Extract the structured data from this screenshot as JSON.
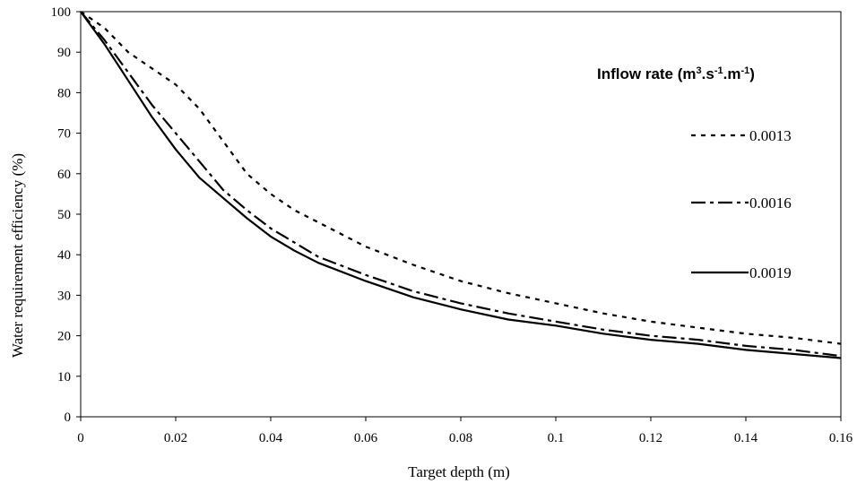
{
  "chart_data": {
    "type": "line",
    "title": "",
    "xlabel": "Target depth (m)",
    "ylabel": "Water requirement efficiency (%)",
    "xlim": [
      0,
      0.16
    ],
    "ylim": [
      0,
      100
    ],
    "x_ticks": [
      "0",
      "0.02",
      "0.04",
      "0.06",
      "0.08",
      "0.1",
      "0.12",
      "0.14",
      "0.16"
    ],
    "y_ticks": [
      "0",
      "10",
      "20",
      "30",
      "40",
      "50",
      "60",
      "70",
      "80",
      "90",
      "100"
    ],
    "grid": false,
    "legend": {
      "title_main": "Inflow rate (m",
      "sup1": "3",
      "title_mid1": ".s",
      "sup2": "-1",
      "title_mid2": ".m",
      "sup3": "-1",
      "title_end": ")",
      "placement": "right"
    },
    "series": [
      {
        "name": "0.0013",
        "style": "dotted",
        "points": [
          [
            0,
            100
          ],
          [
            0.005,
            96
          ],
          [
            0.01,
            90
          ],
          [
            0.015,
            86
          ],
          [
            0.02,
            82
          ],
          [
            0.025,
            76
          ],
          [
            0.03,
            68
          ],
          [
            0.035,
            60
          ],
          [
            0.04,
            55
          ],
          [
            0.045,
            51
          ],
          [
            0.05,
            48
          ],
          [
            0.06,
            42
          ],
          [
            0.07,
            37.5
          ],
          [
            0.08,
            33.5
          ],
          [
            0.09,
            30.5
          ],
          [
            0.1,
            28
          ],
          [
            0.11,
            25.5
          ],
          [
            0.12,
            23.5
          ],
          [
            0.13,
            22
          ],
          [
            0.14,
            20.5
          ],
          [
            0.15,
            19.5
          ],
          [
            0.16,
            18
          ]
        ]
      },
      {
        "name": "0.0016",
        "style": "dashdot",
        "points": [
          [
            0,
            100
          ],
          [
            0.005,
            93
          ],
          [
            0.01,
            85
          ],
          [
            0.015,
            77
          ],
          [
            0.02,
            70
          ],
          [
            0.025,
            63
          ],
          [
            0.03,
            56
          ],
          [
            0.035,
            51
          ],
          [
            0.04,
            46.5
          ],
          [
            0.045,
            43
          ],
          [
            0.05,
            39.5
          ],
          [
            0.06,
            35
          ],
          [
            0.07,
            31
          ],
          [
            0.08,
            28
          ],
          [
            0.09,
            25.5
          ],
          [
            0.1,
            23.5
          ],
          [
            0.11,
            21.5
          ],
          [
            0.12,
            20
          ],
          [
            0.13,
            19
          ],
          [
            0.14,
            17.5
          ],
          [
            0.15,
            16.5
          ],
          [
            0.16,
            15
          ]
        ]
      },
      {
        "name": "0.0019",
        "style": "solid",
        "points": [
          [
            0,
            100
          ],
          [
            0.005,
            92
          ],
          [
            0.01,
            83
          ],
          [
            0.015,
            74
          ],
          [
            0.02,
            66
          ],
          [
            0.025,
            59
          ],
          [
            0.03,
            54
          ],
          [
            0.035,
            49
          ],
          [
            0.04,
            44.5
          ],
          [
            0.045,
            41
          ],
          [
            0.05,
            38
          ],
          [
            0.06,
            33.5
          ],
          [
            0.07,
            29.5
          ],
          [
            0.08,
            26.5
          ],
          [
            0.09,
            24
          ],
          [
            0.1,
            22.5
          ],
          [
            0.11,
            20.5
          ],
          [
            0.12,
            19
          ],
          [
            0.13,
            18
          ],
          [
            0.14,
            16.5
          ],
          [
            0.15,
            15.5
          ],
          [
            0.16,
            14.5
          ]
        ]
      }
    ]
  }
}
